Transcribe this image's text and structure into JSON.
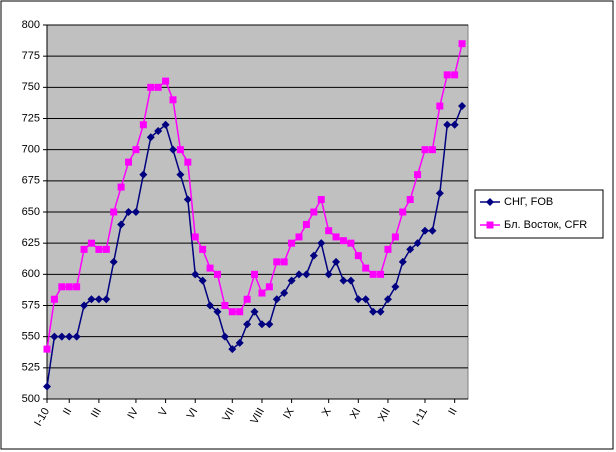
{
  "chart_data": {
    "type": "line",
    "categories": [
      "I-10",
      null,
      null,
      "II",
      null,
      null,
      null,
      "III",
      null,
      null,
      null,
      null,
      "IV",
      null,
      null,
      null,
      "V",
      null,
      null,
      null,
      "VI",
      null,
      null,
      null,
      null,
      "VII",
      null,
      null,
      null,
      "VIII",
      null,
      null,
      null,
      "IX",
      null,
      null,
      null,
      null,
      "X",
      null,
      null,
      null,
      "XI",
      null,
      null,
      null,
      "XII",
      null,
      null,
      null,
      null,
      "I-11",
      null,
      null,
      null,
      "II",
      null
    ],
    "series": [
      {
        "name": "СНГ, FOB",
        "color": "#000080",
        "marker": "diamond",
        "values": [
          510,
          550,
          550,
          550,
          550,
          575,
          580,
          580,
          580,
          610,
          640,
          650,
          650,
          680,
          710,
          715,
          720,
          700,
          680,
          660,
          600,
          595,
          575,
          570,
          550,
          540,
          545,
          560,
          570,
          560,
          560,
          580,
          585,
          595,
          600,
          600,
          615,
          625,
          600,
          610,
          595,
          595,
          580,
          580,
          570,
          570,
          580,
          590,
          610,
          620,
          625,
          635,
          635,
          665,
          720,
          720,
          735
        ]
      },
      {
        "name": "Бл. Восток, CFR",
        "color": "#ff00ff",
        "marker": "square",
        "values": [
          540,
          580,
          590,
          590,
          590,
          620,
          625,
          620,
          620,
          650,
          670,
          690,
          700,
          720,
          750,
          750,
          755,
          740,
          700,
          690,
          630,
          620,
          605,
          600,
          575,
          570,
          570,
          580,
          600,
          585,
          590,
          610,
          610,
          625,
          630,
          640,
          650,
          660,
          635,
          630,
          627,
          625,
          615,
          605,
          600,
          600,
          620,
          630,
          650,
          660,
          680,
          700,
          700,
          735,
          760,
          760,
          785
        ]
      }
    ],
    "ylim": [
      500,
      800
    ],
    "yticks": [
      500,
      525,
      550,
      575,
      600,
      625,
      650,
      675,
      700,
      725,
      750,
      775,
      800
    ],
    "grid": true,
    "plot_background": "#c0c0c0",
    "legend": "right"
  }
}
